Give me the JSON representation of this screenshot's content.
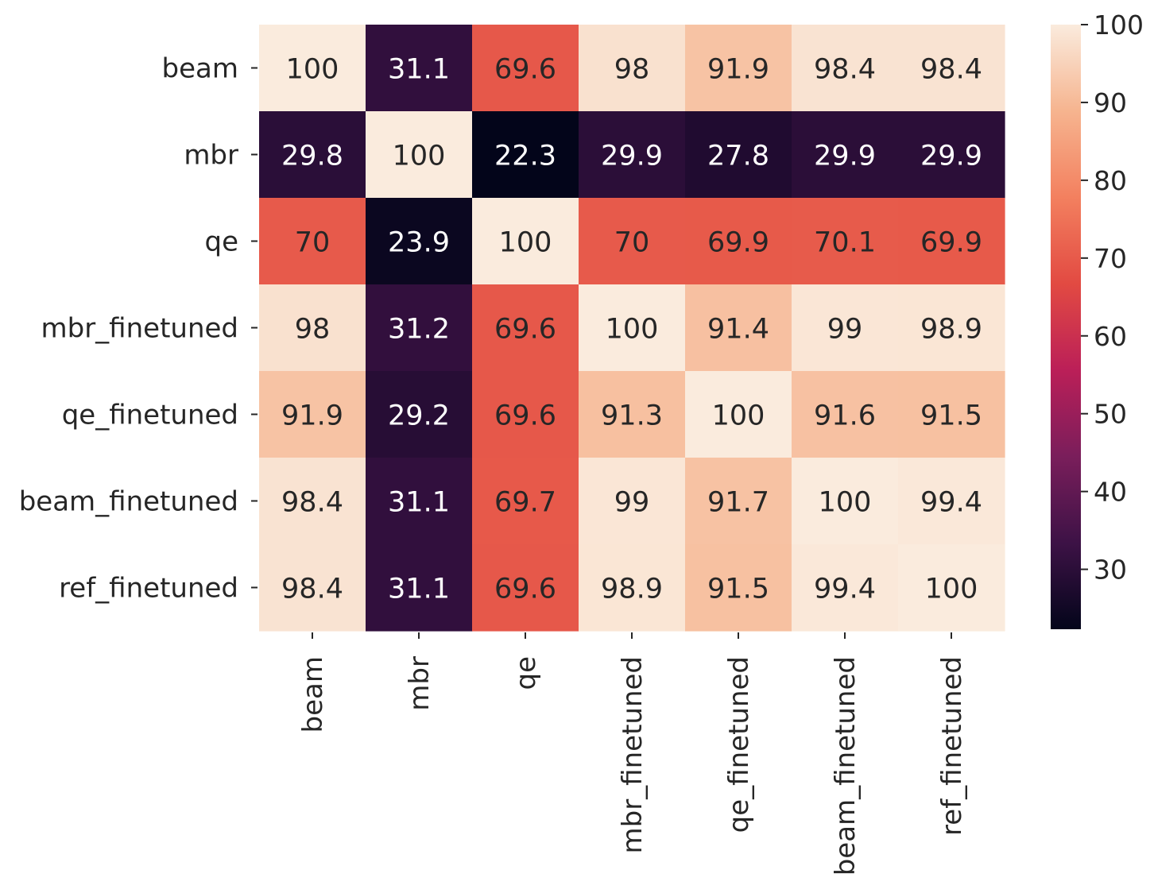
{
  "chart_data": {
    "type": "heatmap",
    "title": "",
    "xlabel": "",
    "ylabel": "",
    "rows": [
      "beam",
      "mbr",
      "qe",
      "mbr_finetuned",
      "qe_finetuned",
      "beam_finetuned",
      "ref_finetuned"
    ],
    "columns": [
      "beam",
      "mbr",
      "qe",
      "mbr_finetuned",
      "qe_finetuned",
      "beam_finetuned",
      "ref_finetuned"
    ],
    "values": [
      [
        100,
        31.1,
        69.6,
        98,
        91.9,
        98.4,
        98.4
      ],
      [
        29.8,
        100,
        22.3,
        29.9,
        27.8,
        29.9,
        29.9
      ],
      [
        70,
        23.9,
        100,
        70,
        69.9,
        70.1,
        69.9
      ],
      [
        98,
        31.2,
        69.6,
        100,
        91.4,
        99,
        98.9
      ],
      [
        91.9,
        29.2,
        69.6,
        91.3,
        100,
        91.6,
        91.5
      ],
      [
        98.4,
        31.1,
        69.7,
        99,
        91.7,
        100,
        99.4
      ],
      [
        98.4,
        31.1,
        69.6,
        98.9,
        91.5,
        99.4,
        100
      ]
    ],
    "colorbar": {
      "min": 22.3,
      "max": 100,
      "ticks": [
        30,
        40,
        50,
        60,
        70,
        80,
        90,
        100
      ]
    },
    "colormap": [
      "#03051a",
      "#3d1246",
      "#7a1e5b",
      "#bb1f58",
      "#e24a42",
      "#f3805f",
      "#f6b48f",
      "#faebdd"
    ],
    "annotations": true,
    "grid": false
  }
}
